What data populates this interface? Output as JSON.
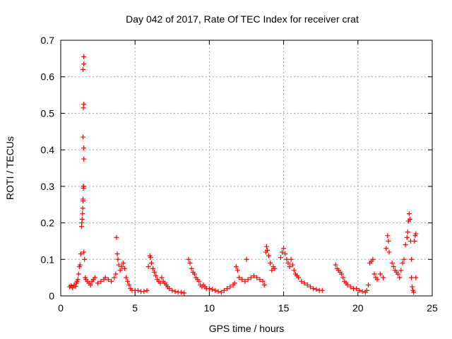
{
  "chart_data": {
    "type": "scatter",
    "title": "Day 042 of 2017, Rate Of TEC Index for receiver crat",
    "xlabel": "GPS time / hours",
    "ylabel": "ROTI / TECUs",
    "xlim": [
      0,
      25
    ],
    "ylim": [
      0,
      0.7
    ],
    "xticks": [
      0,
      5,
      10,
      15,
      20,
      25
    ],
    "yticks": [
      0,
      0.1,
      0.2,
      0.3,
      0.4,
      0.5,
      0.6,
      0.7
    ],
    "xtick_labels": [
      "0",
      "5",
      "10",
      "15",
      "20",
      "25"
    ],
    "ytick_labels": [
      "0",
      "0.1",
      "0.2",
      "0.3",
      "0.4",
      "0.5",
      "0.6",
      "0.7"
    ],
    "grid": true,
    "marker": "+",
    "marker_color": "#ff0000",
    "series": [
      {
        "name": "ROTI",
        "points": [
          [
            0.6,
            0.025
          ],
          [
            0.7,
            0.028
          ],
          [
            0.8,
            0.022
          ],
          [
            0.9,
            0.03
          ],
          [
            1.0,
            0.026
          ],
          [
            1.05,
            0.035
          ],
          [
            1.1,
            0.04
          ],
          [
            1.15,
            0.045
          ],
          [
            1.2,
            0.06
          ],
          [
            1.25,
            0.08
          ],
          [
            1.3,
            0.085
          ],
          [
            1.35,
            0.115
          ],
          [
            1.4,
            0.19
          ],
          [
            1.42,
            0.2
          ],
          [
            1.44,
            0.21
          ],
          [
            1.46,
            0.225
          ],
          [
            1.48,
            0.24
          ],
          [
            1.5,
            0.26
          ],
          [
            1.5,
            0.265
          ],
          [
            1.52,
            0.295
          ],
          [
            1.52,
            0.3
          ],
          [
            1.54,
            0.3
          ],
          [
            1.55,
            0.375
          ],
          [
            1.55,
            0.405
          ],
          [
            1.5,
            0.435
          ],
          [
            1.52,
            0.515
          ],
          [
            1.55,
            0.525
          ],
          [
            1.5,
            0.62
          ],
          [
            1.55,
            0.635
          ],
          [
            1.55,
            0.655
          ],
          [
            1.55,
            0.12
          ],
          [
            1.6,
            0.1
          ],
          [
            1.65,
            0.05
          ],
          [
            1.7,
            0.045
          ],
          [
            1.8,
            0.04
          ],
          [
            1.9,
            0.035
          ],
          [
            2.0,
            0.03
          ],
          [
            2.1,
            0.04
          ],
          [
            2.2,
            0.045
          ],
          [
            2.3,
            0.05
          ],
          [
            2.5,
            0.035
          ],
          [
            2.7,
            0.04
          ],
          [
            2.9,
            0.045
          ],
          [
            3.0,
            0.05
          ],
          [
            3.2,
            0.045
          ],
          [
            3.4,
            0.04
          ],
          [
            3.6,
            0.05
          ],
          [
            3.7,
            0.06
          ],
          [
            3.75,
            0.16
          ],
          [
            3.8,
            0.115
          ],
          [
            3.85,
            0.1
          ],
          [
            3.9,
            0.085
          ],
          [
            4.0,
            0.07
          ],
          [
            4.1,
            0.08
          ],
          [
            4.2,
            0.09
          ],
          [
            4.3,
            0.075
          ],
          [
            4.4,
            0.05
          ],
          [
            4.5,
            0.04
          ],
          [
            4.6,
            0.03
          ],
          [
            4.7,
            0.02
          ],
          [
            4.8,
            0.015
          ],
          [
            5.0,
            0.015
          ],
          [
            5.2,
            0.015
          ],
          [
            5.4,
            0.012
          ],
          [
            5.6,
            0.012
          ],
          [
            5.8,
            0.015
          ],
          [
            5.9,
            0.08
          ],
          [
            6.0,
            0.11
          ],
          [
            6.05,
            0.105
          ],
          [
            6.1,
            0.09
          ],
          [
            6.2,
            0.075
          ],
          [
            6.3,
            0.065
          ],
          [
            6.4,
            0.055
          ],
          [
            6.5,
            0.045
          ],
          [
            6.6,
            0.04
          ],
          [
            6.7,
            0.035
          ],
          [
            6.8,
            0.05
          ],
          [
            6.9,
            0.04
          ],
          [
            7.0,
            0.035
          ],
          [
            7.1,
            0.03
          ],
          [
            7.2,
            0.025
          ],
          [
            7.3,
            0.02
          ],
          [
            7.5,
            0.015
          ],
          [
            7.7,
            0.012
          ],
          [
            7.9,
            0.01
          ],
          [
            8.1,
            0.01
          ],
          [
            8.3,
            0.008
          ],
          [
            8.6,
            0.1
          ],
          [
            8.7,
            0.09
          ],
          [
            8.8,
            0.075
          ],
          [
            8.9,
            0.065
          ],
          [
            9.0,
            0.06
          ],
          [
            9.1,
            0.05
          ],
          [
            9.2,
            0.045
          ],
          [
            9.3,
            0.04
          ],
          [
            9.4,
            0.03
          ],
          [
            9.5,
            0.025
          ],
          [
            9.6,
            0.03
          ],
          [
            9.7,
            0.025
          ],
          [
            9.8,
            0.02
          ],
          [
            10.0,
            0.02
          ],
          [
            10.2,
            0.018
          ],
          [
            10.4,
            0.015
          ],
          [
            10.6,
            0.012
          ],
          [
            10.8,
            0.01
          ],
          [
            11.0,
            0.015
          ],
          [
            11.2,
            0.02
          ],
          [
            11.4,
            0.025
          ],
          [
            11.6,
            0.03
          ],
          [
            11.7,
            0.035
          ],
          [
            11.8,
            0.08
          ],
          [
            11.9,
            0.07
          ],
          [
            12.0,
            0.05
          ],
          [
            12.2,
            0.045
          ],
          [
            12.4,
            0.04
          ],
          [
            12.5,
            0.1
          ],
          [
            12.6,
            0.045
          ],
          [
            12.8,
            0.05
          ],
          [
            13.0,
            0.055
          ],
          [
            13.2,
            0.05
          ],
          [
            13.4,
            0.045
          ],
          [
            13.6,
            0.04
          ],
          [
            13.7,
            0.03
          ],
          [
            13.8,
            0.12
          ],
          [
            13.85,
            0.135
          ],
          [
            13.9,
            0.125
          ],
          [
            14.0,
            0.11
          ],
          [
            14.1,
            0.09
          ],
          [
            14.2,
            0.07
          ],
          [
            14.3,
            0.08
          ],
          [
            14.4,
            0.075
          ],
          [
            14.8,
            0.105
          ],
          [
            14.9,
            0.12
          ],
          [
            15.0,
            0.13
          ],
          [
            15.1,
            0.115
          ],
          [
            15.2,
            0.1
          ],
          [
            15.3,
            0.09
          ],
          [
            15.4,
            0.08
          ],
          [
            15.5,
            0.1
          ],
          [
            15.6,
            0.085
          ],
          [
            15.7,
            0.07
          ],
          [
            15.8,
            0.06
          ],
          [
            15.9,
            0.055
          ],
          [
            16.0,
            0.05
          ],
          [
            16.2,
            0.04
          ],
          [
            16.4,
            0.035
          ],
          [
            16.6,
            0.03
          ],
          [
            16.8,
            0.025
          ],
          [
            17.0,
            0.02
          ],
          [
            17.2,
            0.018
          ],
          [
            17.4,
            0.015
          ],
          [
            17.6,
            0.015
          ],
          [
            18.5,
            0.085
          ],
          [
            18.6,
            0.075
          ],
          [
            18.7,
            0.07
          ],
          [
            18.8,
            0.065
          ],
          [
            18.9,
            0.06
          ],
          [
            19.0,
            0.05
          ],
          [
            19.1,
            0.04
          ],
          [
            19.2,
            0.035
          ],
          [
            19.3,
            0.03
          ],
          [
            19.5,
            0.025
          ],
          [
            19.7,
            0.02
          ],
          [
            19.9,
            0.02
          ],
          [
            20.1,
            0.015
          ],
          [
            20.3,
            0.012
          ],
          [
            20.5,
            0.01
          ],
          [
            20.6,
            0.015
          ],
          [
            20.7,
            0.03
          ],
          [
            20.8,
            0.09
          ],
          [
            20.9,
            0.095
          ],
          [
            21.0,
            0.1
          ],
          [
            21.1,
            0.06
          ],
          [
            21.2,
            0.05
          ],
          [
            21.3,
            0.045
          ],
          [
            21.5,
            0.06
          ],
          [
            21.7,
            0.05
          ],
          [
            21.9,
            0.13
          ],
          [
            22.0,
            0.165
          ],
          [
            22.05,
            0.15
          ],
          [
            22.1,
            0.12
          ],
          [
            22.3,
            0.09
          ],
          [
            22.4,
            0.08
          ],
          [
            22.5,
            0.07
          ],
          [
            22.6,
            0.065
          ],
          [
            22.7,
            0.06
          ],
          [
            22.8,
            0.05
          ],
          [
            22.9,
            0.07
          ],
          [
            23.0,
            0.09
          ],
          [
            23.1,
            0.1
          ],
          [
            23.2,
            0.14
          ],
          [
            23.3,
            0.16
          ],
          [
            23.35,
            0.175
          ],
          [
            23.4,
            0.205
          ],
          [
            23.45,
            0.225
          ],
          [
            23.5,
            0.21
          ],
          [
            23.55,
            0.15
          ],
          [
            23.6,
            0.1
          ],
          [
            23.6,
            0.05
          ],
          [
            23.65,
            0.025
          ],
          [
            23.7,
            0.015
          ],
          [
            23.75,
            0.01
          ],
          [
            23.8,
            0.15
          ],
          [
            23.85,
            0.165
          ],
          [
            23.9,
            0.17
          ],
          [
            23.9,
            0.05
          ]
        ]
      }
    ]
  }
}
